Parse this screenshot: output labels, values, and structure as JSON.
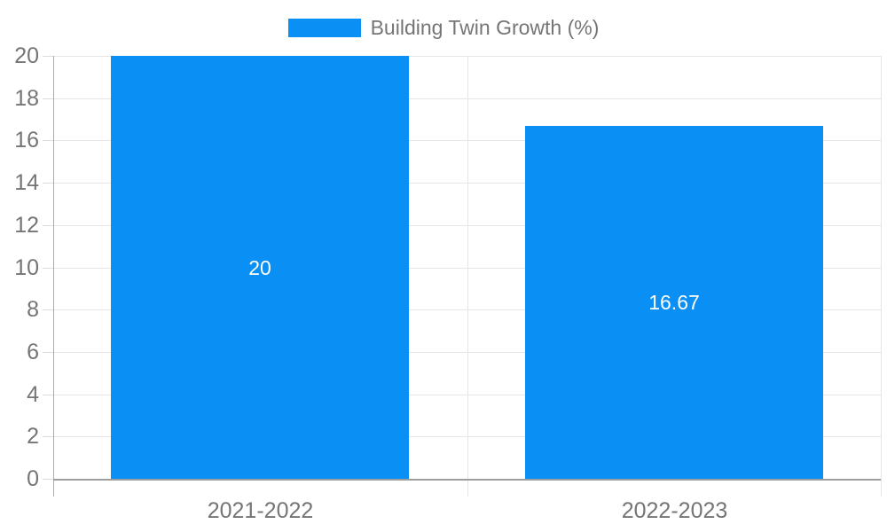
{
  "chart": {
    "legend_label": "Building Twin Growth (%)",
    "colors": {
      "bar": "#0a8ff5",
      "grid": "#e6e6e6",
      "tick": "#dcdcdc",
      "axis_y": "#adadad",
      "axis_x": "#9e9e9e",
      "label_text": "#757575",
      "bar_label_text": "#ffffff",
      "background": "#ffffff"
    }
  },
  "chart_data": {
    "type": "bar",
    "title": "",
    "xlabel": "",
    "ylabel": "",
    "categories": [
      "2021-2022",
      "2022-2023"
    ],
    "values": [
      20,
      16.67
    ],
    "bar_labels": [
      "20",
      "16.67"
    ],
    "legend_entries": [
      "Building Twin Growth (%)"
    ],
    "legend_position": "top",
    "ylim": [
      0,
      20
    ],
    "ytick_step": 2,
    "grid": true
  }
}
